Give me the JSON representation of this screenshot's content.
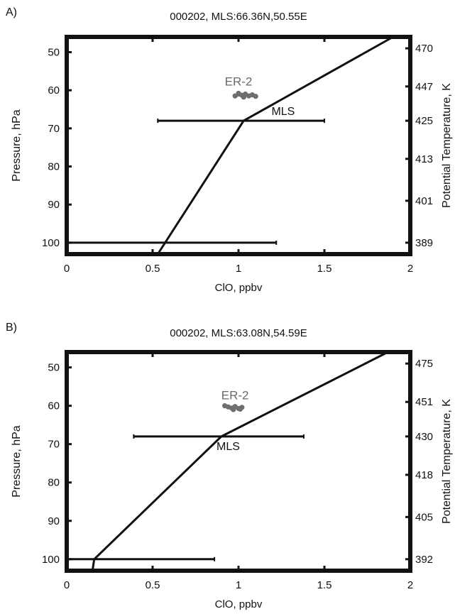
{
  "chart_data": [
    {
      "type": "line",
      "panel_label": "A)",
      "title": "000202, MLS:66.36N,50.55E",
      "xlabel": "ClO, ppbv",
      "ylabel": "Pressure, hPa",
      "y2label": "Potential Temperature, K",
      "xlim": [
        0,
        2
      ],
      "ylim": [
        46,
        103
      ],
      "y_reversed": true,
      "x_ticks": [
        "0",
        "0.5",
        "1",
        "1.5",
        "2"
      ],
      "y_ticks": [
        50,
        60,
        70,
        80,
        90,
        100
      ],
      "y2_ticks": [
        {
          "pressure": 49,
          "label": "470"
        },
        {
          "pressure": 59,
          "label": "447"
        },
        {
          "pressure": 68,
          "label": "425"
        },
        {
          "pressure": 78,
          "label": "413"
        },
        {
          "pressure": 89,
          "label": "401"
        },
        {
          "pressure": 100,
          "label": "389"
        }
      ],
      "series": [
        {
          "name": "MLS",
          "x": [
            0.53,
            1.03,
            1.9
          ],
          "y": [
            103,
            68,
            46
          ]
        }
      ],
      "error_bars": [
        {
          "y": 46,
          "xmin": 1.46,
          "xmax": 2.0
        },
        {
          "y": 68,
          "xmin": 0.53,
          "xmax": 1.5
        },
        {
          "y": 100,
          "xmin": 0,
          "xmax": 1.22
        }
      ],
      "er2": {
        "label": "ER-2",
        "x": [
          0.98,
          1.0,
          1.02,
          1.04,
          1.06,
          1.08,
          1.1,
          1.0,
          1.03
        ],
        "y": [
          61.5,
          61.0,
          61.3,
          61.0,
          61.5,
          61.2,
          61.6,
          60.8,
          61.8
        ]
      },
      "annotations": [
        {
          "text": "ER-2",
          "x": 1.0,
          "y": 58.8
        },
        {
          "text": "MLS",
          "x": 1.26,
          "y": 66.5
        }
      ]
    },
    {
      "type": "line",
      "panel_label": "B)",
      "title": "000202, MLS:63.08N,54.59E",
      "xlabel": "ClO, ppbv",
      "ylabel": "Pressure, hPa",
      "y2label": "Potential Temperature, K",
      "xlim": [
        0,
        2
      ],
      "ylim": [
        46,
        103
      ],
      "y_reversed": true,
      "x_ticks": [
        "0",
        "0.5",
        "1",
        "1.5",
        "2"
      ],
      "y_ticks": [
        50,
        60,
        70,
        80,
        90,
        100
      ],
      "y2_ticks": [
        {
          "pressure": 49,
          "label": "475"
        },
        {
          "pressure": 59,
          "label": "451"
        },
        {
          "pressure": 68,
          "label": "430"
        },
        {
          "pressure": 78,
          "label": "418"
        },
        {
          "pressure": 89,
          "label": "405"
        },
        {
          "pressure": 100,
          "label": "392"
        }
      ],
      "series": [
        {
          "name": "MLS",
          "x": [
            0.15,
            0.16,
            0.9,
            1.87
          ],
          "y": [
            103,
            100,
            68,
            46
          ]
        }
      ],
      "error_bars": [
        {
          "y": 46,
          "xmin": 1.43,
          "xmax": 2.0
        },
        {
          "y": 68,
          "xmin": 0.39,
          "xmax": 1.38
        },
        {
          "y": 100,
          "xmin": 0,
          "xmax": 0.86
        }
      ],
      "er2": {
        "label": "ER-2",
        "x": [
          0.92,
          0.94,
          0.96,
          0.98,
          1.0,
          1.02,
          0.97,
          1.01
        ],
        "y": [
          60.0,
          60.3,
          60.6,
          60.2,
          60.7,
          60.4,
          61.0,
          60.9
        ]
      },
      "annotations": [
        {
          "text": "ER-2",
          "x": 0.98,
          "y": 58.3
        },
        {
          "text": "MLS",
          "x": 0.94,
          "y": 71.5
        }
      ]
    }
  ]
}
